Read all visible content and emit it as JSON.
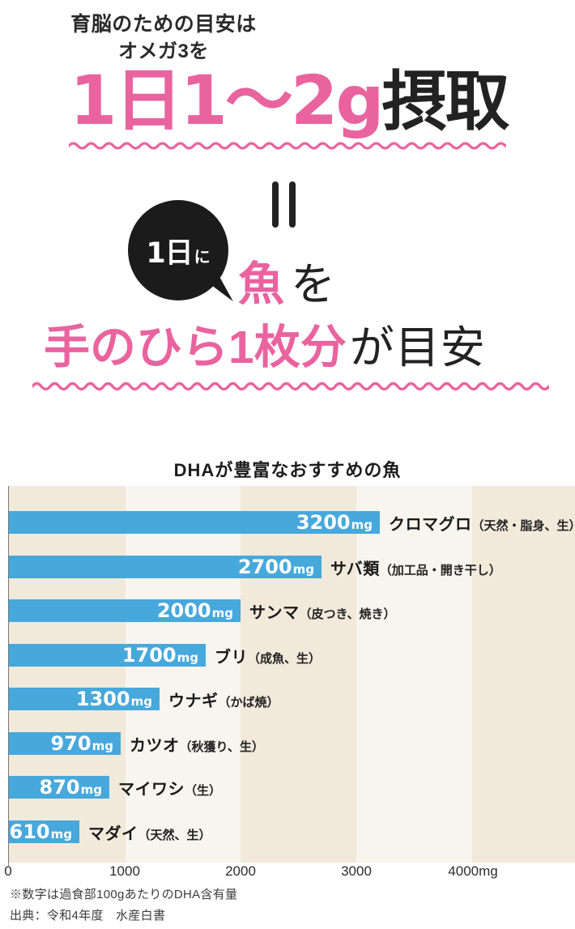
{
  "colors": {
    "pink": "#e9639f",
    "black_text": "#222222",
    "bar_blue": "#47a8db",
    "stripe_dark": "#f1e9da",
    "stripe_light": "#f8f5ee",
    "bubble_black": "#1b1b1b"
  },
  "header": {
    "line1": "育脳のための目安は",
    "line2": "オメガ3を",
    "intake_pink": "1日1〜2g",
    "intake_black": "摂取",
    "bubble_main": "1日",
    "bubble_small": "に",
    "fish_pink": "魚",
    "fish_black": "を",
    "palm_pink": "手のひら1枚分",
    "palm_black": "が目安"
  },
  "chart_data": {
    "type": "bar",
    "orientation": "horizontal",
    "title": "DHAが豊富なおすすめの魚",
    "categories": [
      "クロマグロ",
      "サバ類",
      "サンマ",
      "ブリ",
      "ウナギ",
      "カツオ",
      "マイワシ",
      "マダイ"
    ],
    "category_notes": [
      "（天然・脂身、生）",
      "（加工品・開き干し）",
      "（皮つき、焼き）",
      "（成魚、生）",
      "（かば焼）",
      "（秋獲り、生）",
      "（生）",
      "（天然、生）"
    ],
    "values": [
      3200,
      2700,
      2000,
      1700,
      1300,
      970,
      870,
      610
    ],
    "unit": "mg",
    "xlim": [
      0,
      4880
    ],
    "x_tick_values": [
      0,
      1000,
      2000,
      3000,
      4000
    ],
    "x_tick_labels": [
      "0",
      "1000",
      "2000",
      "3000",
      "4000mg"
    ],
    "bar_color": "#47a8db",
    "value_label_color": "#ffffff",
    "grid": "alternating vertical background stripes every 1000mg",
    "legend": "none"
  },
  "footnotes": {
    "note": "※数字は過食部100gあたりのDHA含有量",
    "source": "出典：令和4年度　水産白書"
  }
}
